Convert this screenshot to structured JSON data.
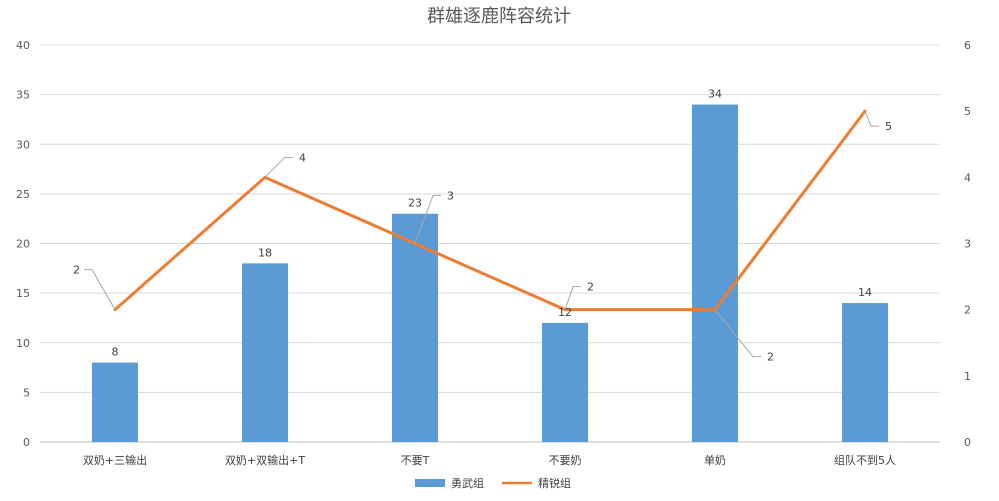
{
  "chart_data": {
    "type": "bar",
    "title": "群雄逐鹿阵容统计",
    "categories": [
      "双奶+三输出",
      "双奶+双输出+T",
      "不要T",
      "不要奶",
      "单奶",
      "组队不到5人"
    ],
    "series": [
      {
        "name": "勇武组",
        "type": "bar",
        "axis": "left",
        "color": "#5B9BD5",
        "values": [
          8,
          18,
          23,
          12,
          34,
          14
        ],
        "labels": [
          "8",
          "18",
          "23",
          "12",
          "34",
          "14"
        ]
      },
      {
        "name": "精锐组",
        "type": "line",
        "axis": "right",
        "color": "#ED7D31",
        "values": [
          2,
          4,
          3,
          2,
          2,
          5
        ],
        "labels": [
          "2",
          "4",
          "3",
          "2",
          "2",
          "5"
        ]
      }
    ],
    "y_left": {
      "min": 0,
      "max": 40,
      "ticks": [
        0,
        5,
        10,
        15,
        20,
        25,
        30,
        35,
        40
      ],
      "tick_labels": [
        "0",
        "5",
        "10",
        "15",
        "20",
        "25",
        "30",
        "35",
        "40"
      ]
    },
    "y_right": {
      "min": 0,
      "max": 6,
      "ticks": [
        0,
        1,
        2,
        3,
        4,
        5,
        6
      ],
      "tick_labels": [
        "0",
        "1",
        "2",
        "3",
        "4",
        "5",
        "6"
      ]
    },
    "xlabel": "",
    "ylabel": "",
    "grid": true,
    "legend_position": "bottom"
  }
}
